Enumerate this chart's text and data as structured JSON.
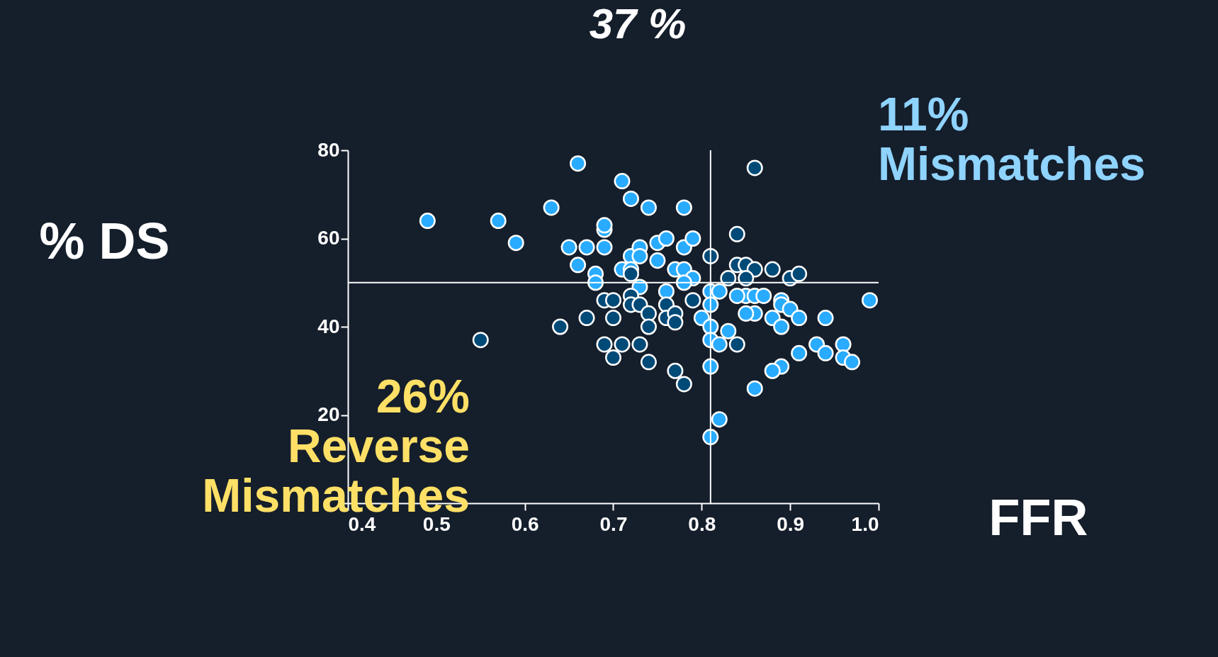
{
  "chart_data": {
    "type": "scatter",
    "title": "37 %",
    "xlabel": "FFR",
    "ylabel": "% DS",
    "xlim": [
      0.4,
      1.0
    ],
    "ylim": [
      0,
      80
    ],
    "xticks": [
      0.4,
      0.5,
      0.6,
      0.7,
      0.8,
      0.9,
      {
        "value": 1.0,
        "label": "1.0"
      }
    ],
    "yticks": [
      {
        "value": 0,
        "label": null
      },
      20,
      40,
      60,
      80
    ],
    "grid": false,
    "legend": false,
    "marker": "circle",
    "series": [
      {
        "color": "#29abff",
        "x": [
          0.49,
          0.57,
          0.59,
          0.63,
          0.66,
          0.71,
          0.72,
          0.74,
          0.78,
          0.65,
          0.67,
          0.69,
          0.69,
          0.69,
          0.66,
          0.68,
          0.68,
          0.71,
          0.72,
          0.72,
          0.73,
          0.73,
          0.75,
          0.76,
          0.75,
          0.77,
          0.78,
          0.78,
          0.79,
          0.79,
          0.78,
          0.73,
          0.76,
          0.81,
          0.82,
          0.85,
          0.86,
          0.87,
          0.84,
          0.81,
          0.8,
          0.81,
          0.81,
          0.82,
          0.83,
          0.86,
          0.85,
          0.88,
          0.89,
          0.89,
          0.9,
          0.89,
          0.91,
          0.94,
          0.99,
          0.93,
          0.94,
          0.96,
          0.96,
          0.97,
          0.91,
          0.89,
          0.88,
          0.86,
          0.81,
          0.82,
          0.81
        ],
        "values": [
          64,
          64,
          59,
          67,
          77,
          73,
          69,
          67,
          67,
          58,
          58,
          58,
          62,
          63,
          54,
          52,
          50,
          53,
          56,
          53,
          58,
          56,
          59,
          60,
          55,
          53,
          58,
          53,
          60,
          51,
          50,
          49,
          48,
          48,
          48,
          47,
          47,
          47,
          47,
          45,
          42,
          40,
          37,
          36,
          39,
          43,
          43,
          42,
          46,
          45,
          44,
          40,
          42,
          42,
          46,
          36,
          34,
          36,
          33,
          32,
          34,
          31,
          30,
          26,
          31,
          19,
          15
        ]
      },
      {
        "color": "#004a78",
        "x": [
          0.55,
          0.64,
          0.67,
          0.69,
          0.7,
          0.7,
          0.69,
          0.7,
          0.71,
          0.72,
          0.72,
          0.73,
          0.74,
          0.74,
          0.73,
          0.74,
          0.76,
          0.76,
          0.77,
          0.77,
          0.79,
          0.77,
          0.78,
          0.81,
          0.84,
          0.86,
          0.84,
          0.85,
          0.86,
          0.83,
          0.85,
          0.88,
          0.9,
          0.91,
          0.84,
          0.72
        ],
        "values": [
          37,
          40,
          42,
          46,
          46,
          42,
          36,
          33,
          36,
          47,
          45,
          45,
          43,
          40,
          36,
          32,
          45,
          42,
          43,
          41,
          46,
          30,
          27,
          56,
          61,
          76,
          54,
          54,
          53,
          51,
          51,
          53,
          51,
          52,
          36,
          52
        ]
      }
    ],
    "ref_lines": [
      {
        "axis": "y",
        "value": 50
      },
      {
        "axis": "x",
        "value": 0.81
      }
    ],
    "annotations": [
      "11%\nMismatches",
      "26%\nReverse\nMismatches"
    ]
  }
}
